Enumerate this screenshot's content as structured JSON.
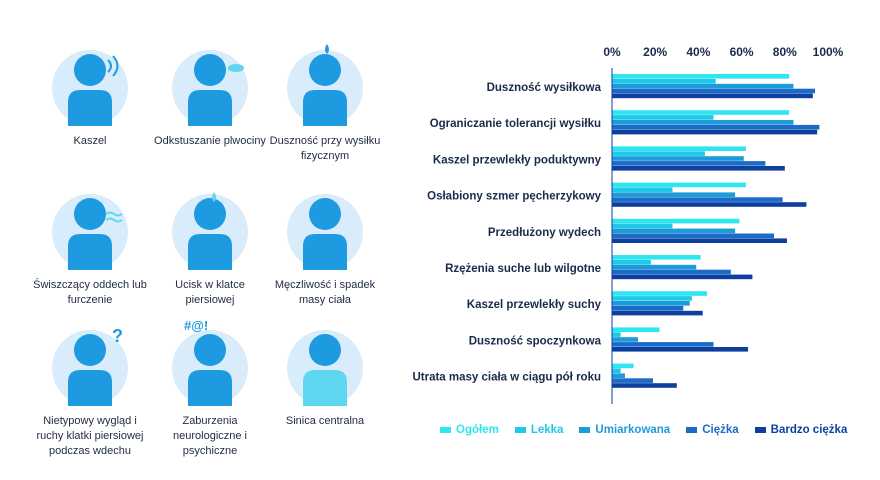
{
  "symptoms": [
    {
      "label": "Kaszel",
      "icon": "cough-person-icon"
    },
    {
      "label": "Odkstuszanie plwociny",
      "icon": "sputum-person-icon"
    },
    {
      "label": "Duszność przy wysiłku fizycznym",
      "icon": "breathless-person-icon"
    },
    {
      "label": "Świszczący oddech lub furczenie",
      "icon": "wheeze-person-icon"
    },
    {
      "label": "Ucisk w klatce piersiowej",
      "icon": "chest-tightness-person-icon"
    },
    {
      "label": "Męczliwość i spadek masy ciała",
      "icon": "fatigue-person-icon"
    },
    {
      "label": "Nietypowy wygląd i ruchy klatki piersiowej podczas wdechu",
      "icon": "chest-movement-person-icon"
    },
    {
      "label": "Zaburzenia neurologiczne i psychiczne",
      "icon": "neuro-person-icon",
      "symbol": "#@!"
    },
    {
      "label": "Sinica centralna",
      "icon": "cyanosis-person-icon"
    }
  ],
  "chart_data": {
    "type": "bar",
    "orientation": "horizontal",
    "categories": [
      "Duszność wysiłkowa",
      "Ograniczanie tolerancji wysiłku",
      "Kaszel przewlekły poduktywny",
      "Osłabiony szmer pęcherzykowy",
      "Przedłużony wydech",
      "Rzężenia suche lub wilgotne",
      "Kaszel przewlekły suchy",
      "Duszność spoczynkowa",
      "Utrata masy ciała w ciągu pół roku"
    ],
    "series": [
      {
        "name": "Ogółem",
        "color": "#2ee6f0",
        "values": [
          82,
          82,
          62,
          62,
          59,
          41,
          44,
          22,
          10
        ]
      },
      {
        "name": "Lekka",
        "color": "#1ec8e8",
        "values": [
          48,
          47,
          43,
          28,
          28,
          18,
          37,
          4,
          4
        ]
      },
      {
        "name": "Umiarkowana",
        "color": "#1d9bd8",
        "values": [
          84,
          84,
          61,
          57,
          57,
          39,
          36,
          12,
          6
        ]
      },
      {
        "name": "Ciężka",
        "color": "#1a6cc8",
        "values": [
          94,
          96,
          71,
          79,
          75,
          55,
          33,
          47,
          19
        ]
      },
      {
        "name": "Bardzo ciężka",
        "color": "#0f3f9e",
        "values": [
          93,
          95,
          80,
          90,
          81,
          65,
          42,
          63,
          30
        ]
      }
    ],
    "xtick_labels": [
      "0%",
      "20%",
      "40%",
      "60%",
      "80%",
      "100%"
    ],
    "xlim": [
      0,
      100
    ],
    "legend_position": "bottom"
  }
}
